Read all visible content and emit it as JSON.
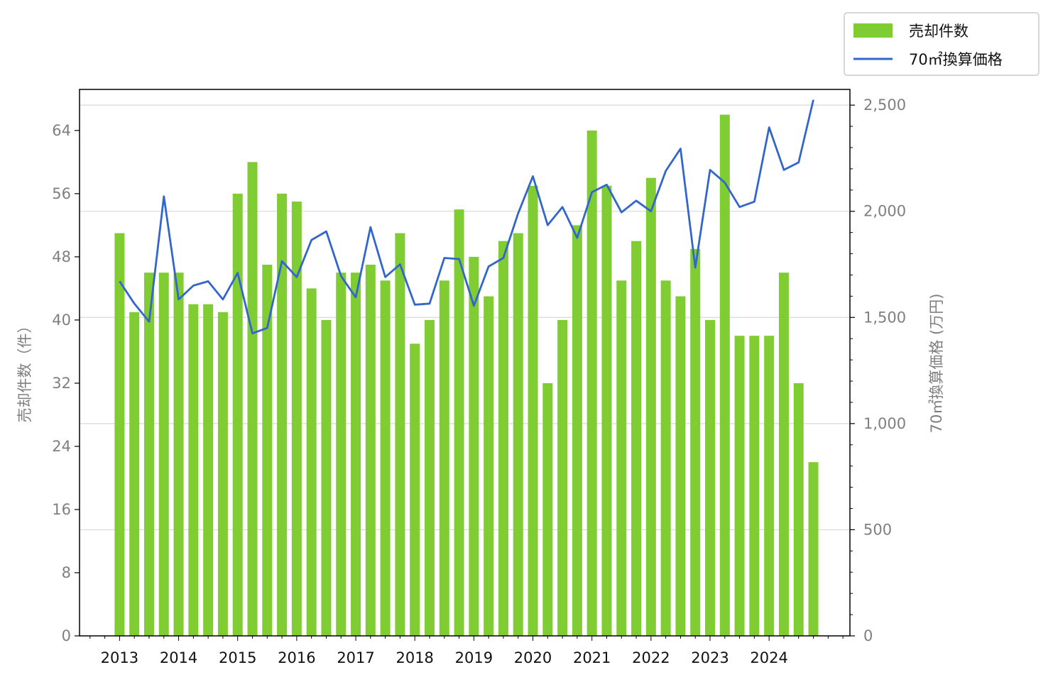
{
  "chart_data": {
    "type": "bar",
    "title": "",
    "xlabel": "",
    "ylabel": "売却件数（件）",
    "y2label": "70㎡換算価格 (万円)",
    "x_tick_labels": [
      "2013",
      "2014",
      "2015",
      "2016",
      "2017",
      "2018",
      "2019",
      "2020",
      "2021",
      "2022",
      "2023",
      "2024"
    ],
    "y_ticks": [
      0,
      8,
      16,
      24,
      32,
      40,
      48,
      56,
      64
    ],
    "y_tick_labels": [
      "0",
      "8",
      "16",
      "24",
      "32",
      "40",
      "48",
      "56",
      "64"
    ],
    "y2_ticks": [
      0,
      500,
      1000,
      1500,
      2000,
      2500
    ],
    "y2_tick_labels": [
      "0",
      "500",
      "1,000",
      "1,500",
      "2,000",
      "2,500"
    ],
    "ylim": [
      0,
      69.2
    ],
    "y2lim": [
      0,
      2574
    ],
    "x_start_year": 2013,
    "periods_per_year": 4,
    "grid": "horizontal, right axis",
    "legend_placement": "top-right outside",
    "series": [
      {
        "name": "売却件数",
        "kind": "bar",
        "axis": "left",
        "color": "#80cc33",
        "values": [
          51,
          41,
          46,
          46,
          46,
          42,
          42,
          41,
          56,
          60,
          47,
          56,
          55,
          44,
          40,
          46,
          46,
          47,
          45,
          51,
          37,
          40,
          45,
          54,
          48,
          43,
          50,
          51,
          57,
          32,
          40,
          52,
          64,
          57,
          45,
          50,
          58,
          45,
          43,
          49,
          40,
          66,
          38,
          38,
          38,
          46,
          32,
          22
        ]
      },
      {
        "name": "70㎡換算価格",
        "kind": "line",
        "axis": "right",
        "color": "#3366cc",
        "values": [
          1670,
          1565,
          1480,
          2070,
          1585,
          1650,
          1670,
          1585,
          1710,
          1425,
          1450,
          1765,
          1690,
          1865,
          1905,
          1695,
          1595,
          1925,
          1690,
          1750,
          1560,
          1565,
          1780,
          1775,
          1555,
          1740,
          1780,
          1990,
          2165,
          1935,
          2020,
          1875,
          2090,
          2125,
          1995,
          2050,
          2000,
          2190,
          2295,
          1735,
          2195,
          2135,
          2020,
          2045,
          2395,
          2195,
          2230,
          2525
        ]
      }
    ]
  }
}
